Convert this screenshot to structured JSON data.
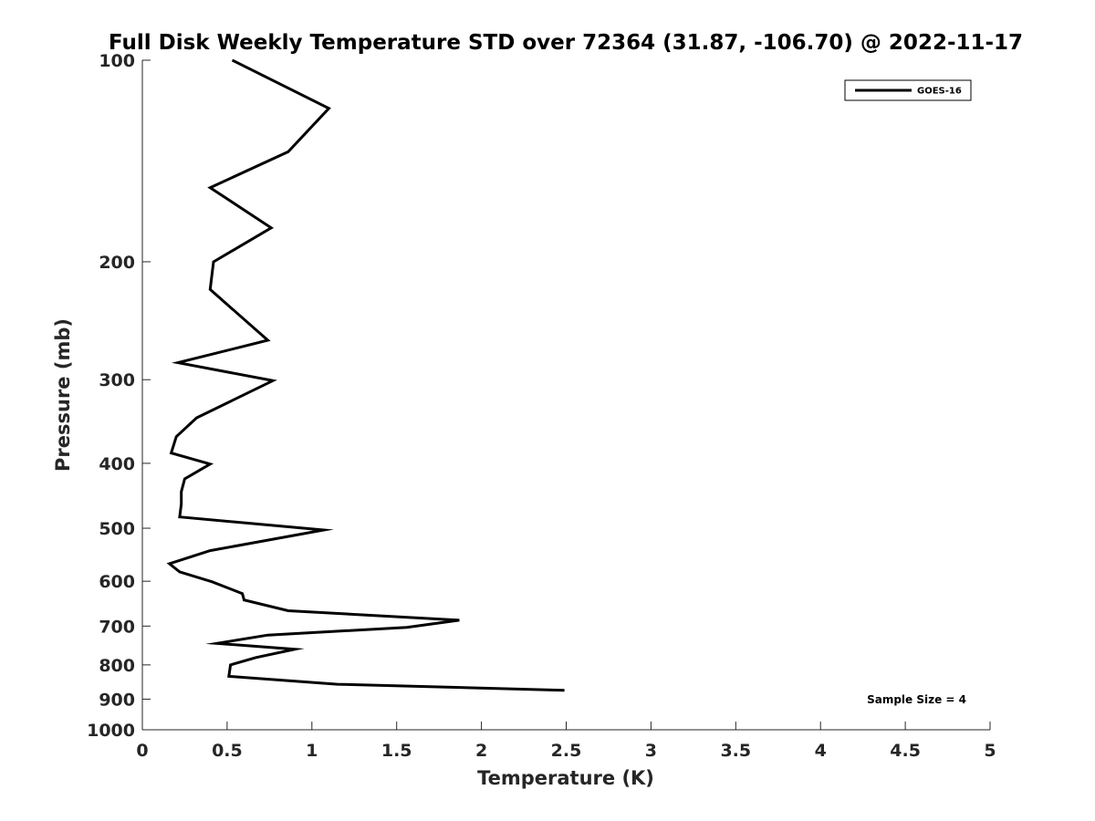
{
  "chart_data": {
    "type": "line",
    "title": "Full Disk Weekly Temperature STD over 72364 (31.87, -106.70) @ 2022-11-17",
    "xlabel": "Temperature (K)",
    "ylabel": "Pressure (mb)",
    "xlim": [
      0,
      5
    ],
    "ylim": [
      1000,
      100
    ],
    "yscale": "log",
    "y_reversed": true,
    "xticks": [
      0,
      0.5,
      1,
      1.5,
      2,
      2.5,
      3,
      3.5,
      4,
      4.5,
      5
    ],
    "xtick_labels": [
      "0",
      "0.5",
      "1",
      "1.5",
      "2",
      "2.5",
      "3",
      "3.5",
      "4",
      "4.5",
      "5"
    ],
    "yticks": [
      100,
      200,
      300,
      400,
      500,
      600,
      700,
      800,
      900,
      1000
    ],
    "ytick_labels": [
      "100",
      "200",
      "300",
      "400",
      "500",
      "600",
      "700",
      "800",
      "900",
      "1000"
    ],
    "grid": false,
    "legend_position": "top-right",
    "series": [
      {
        "name": "GOES-16",
        "color": "#000000",
        "x": [
          0.53,
          1.1,
          0.86,
          0.4,
          0.76,
          0.42,
          0.4,
          0.74,
          0.21,
          0.77,
          0.32,
          0.2,
          0.17,
          0.4,
          0.25,
          0.23,
          0.23,
          0.22,
          1.07,
          0.4,
          0.16,
          0.22,
          0.41,
          0.59,
          0.6,
          0.86,
          1.87,
          1.56,
          0.74,
          0.44,
          0.9,
          0.67,
          0.52,
          0.51,
          1.15,
          2.49
        ],
        "y": [
          100,
          118,
          137,
          155,
          178,
          200,
          220,
          262,
          283,
          301,
          342,
          365,
          386,
          401,
          422,
          441,
          460,
          481,
          503,
          540,
          565,
          581,
          601,
          626,
          640,
          664,
          686,
          703,
          722,
          743,
          758,
          780,
          800,
          832,
          855,
          873
        ]
      }
    ],
    "annotation": "Sample Size = 4"
  }
}
